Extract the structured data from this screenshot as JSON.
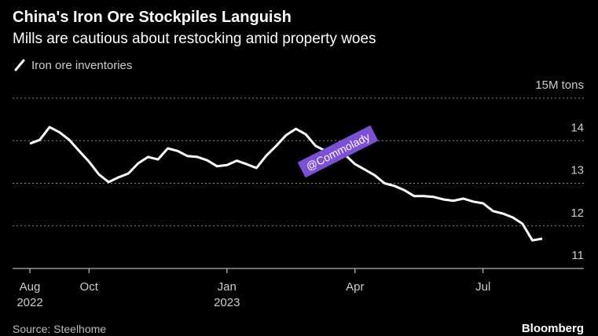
{
  "chart_data": {
    "type": "line",
    "title": "China's Iron Ore Stockpiles Languish",
    "subtitle": "Mills are cautious about restocking amid property woes",
    "categories": [
      "Aug 2022",
      null,
      null,
      null,
      null,
      null,
      "Oct",
      null,
      null,
      null,
      null,
      null,
      null,
      null,
      null,
      null,
      null,
      null,
      null,
      null,
      "Jan 2023",
      null,
      null,
      null,
      null,
      null,
      null,
      null,
      null,
      null,
      null,
      null,
      null,
      "Apr",
      null,
      null,
      null,
      null,
      null,
      null,
      null,
      null,
      null,
      null,
      null,
      null,
      "Jul",
      null,
      null,
      null,
      null,
      null,
      null
    ],
    "series": [
      {
        "name": "Iron ore inventories",
        "color": "#ffffff",
        "values": [
          13.93,
          14.02,
          14.32,
          14.2,
          14.02,
          13.76,
          13.51,
          13.21,
          13.03,
          13.14,
          13.23,
          13.47,
          13.62,
          13.56,
          13.82,
          13.76,
          13.64,
          13.62,
          13.54,
          13.4,
          13.43,
          13.53,
          13.45,
          13.36,
          13.65,
          13.88,
          14.13,
          14.28,
          14.15,
          13.88,
          13.76,
          13.65,
          13.67,
          13.45,
          13.32,
          13.19,
          13.0,
          12.94,
          12.84,
          12.7,
          12.7,
          12.68,
          12.62,
          12.59,
          12.64,
          12.57,
          12.53,
          12.35,
          12.29,
          12.2,
          12.05,
          11.66,
          11.7
        ]
      }
    ],
    "ylim": [
      11,
      15
    ],
    "yticks": [
      11,
      12,
      13,
      14,
      {
        "value": 15,
        "label": "15M tons"
      }
    ],
    "grid": true,
    "annotation": "@Commolady",
    "source": "Source: Steelhome",
    "brand": "Bloomberg"
  }
}
